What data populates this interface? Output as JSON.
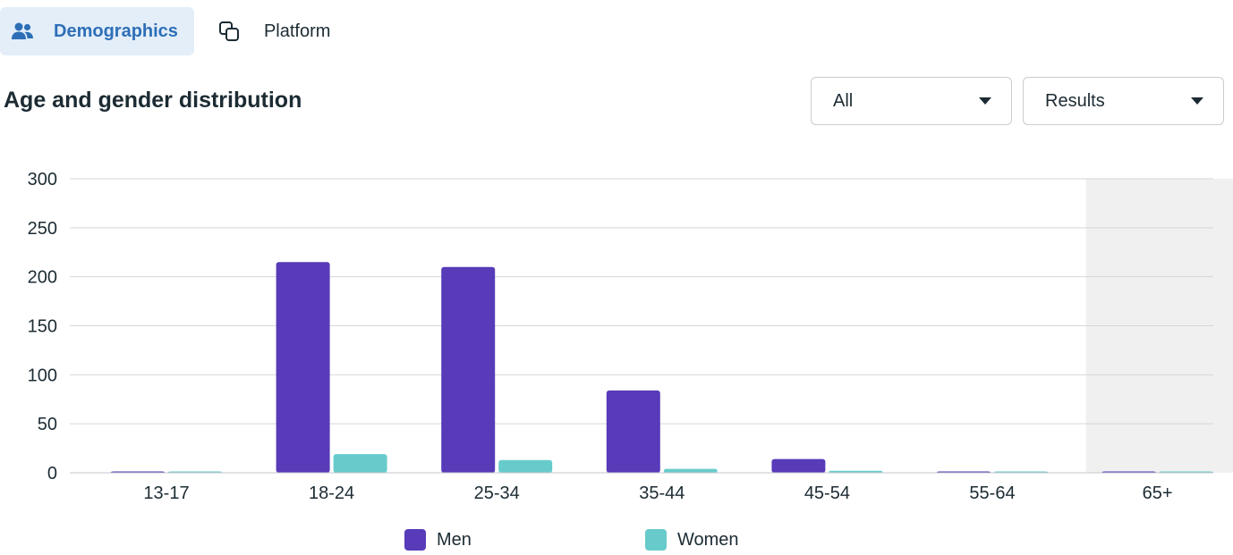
{
  "tabs": [
    {
      "label": "Demographics",
      "active": true,
      "icon": "people-icon"
    },
    {
      "label": "Platform",
      "active": false,
      "icon": "copy-squares-icon"
    }
  ],
  "colors": {
    "men": "#573bb8",
    "women": "#68cbcb",
    "active_tab_bg": "#e3eef9",
    "active_tab_text": "#2d6fb7",
    "highlight_bg": "#f0f0f0"
  },
  "filters": {
    "audience": {
      "value": "All"
    },
    "metric": {
      "value": "Results"
    }
  },
  "chart_data": {
    "type": "bar",
    "title": "Age and gender distribution",
    "categories": [
      "13-17",
      "18-24",
      "25-34",
      "35-44",
      "45-54",
      "55-64",
      "65+"
    ],
    "series": [
      {
        "name": "Men",
        "values": [
          1,
          215,
          210,
          84,
          14,
          1,
          1
        ]
      },
      {
        "name": "Women",
        "values": [
          1,
          19,
          13,
          4,
          2,
          1,
          1
        ]
      }
    ],
    "yticks": [
      0,
      50,
      100,
      150,
      200,
      250,
      300
    ],
    "ylim": [
      0,
      300
    ],
    "grid": true,
    "highlighted_category": "65+",
    "legend_position": "bottom-center"
  }
}
